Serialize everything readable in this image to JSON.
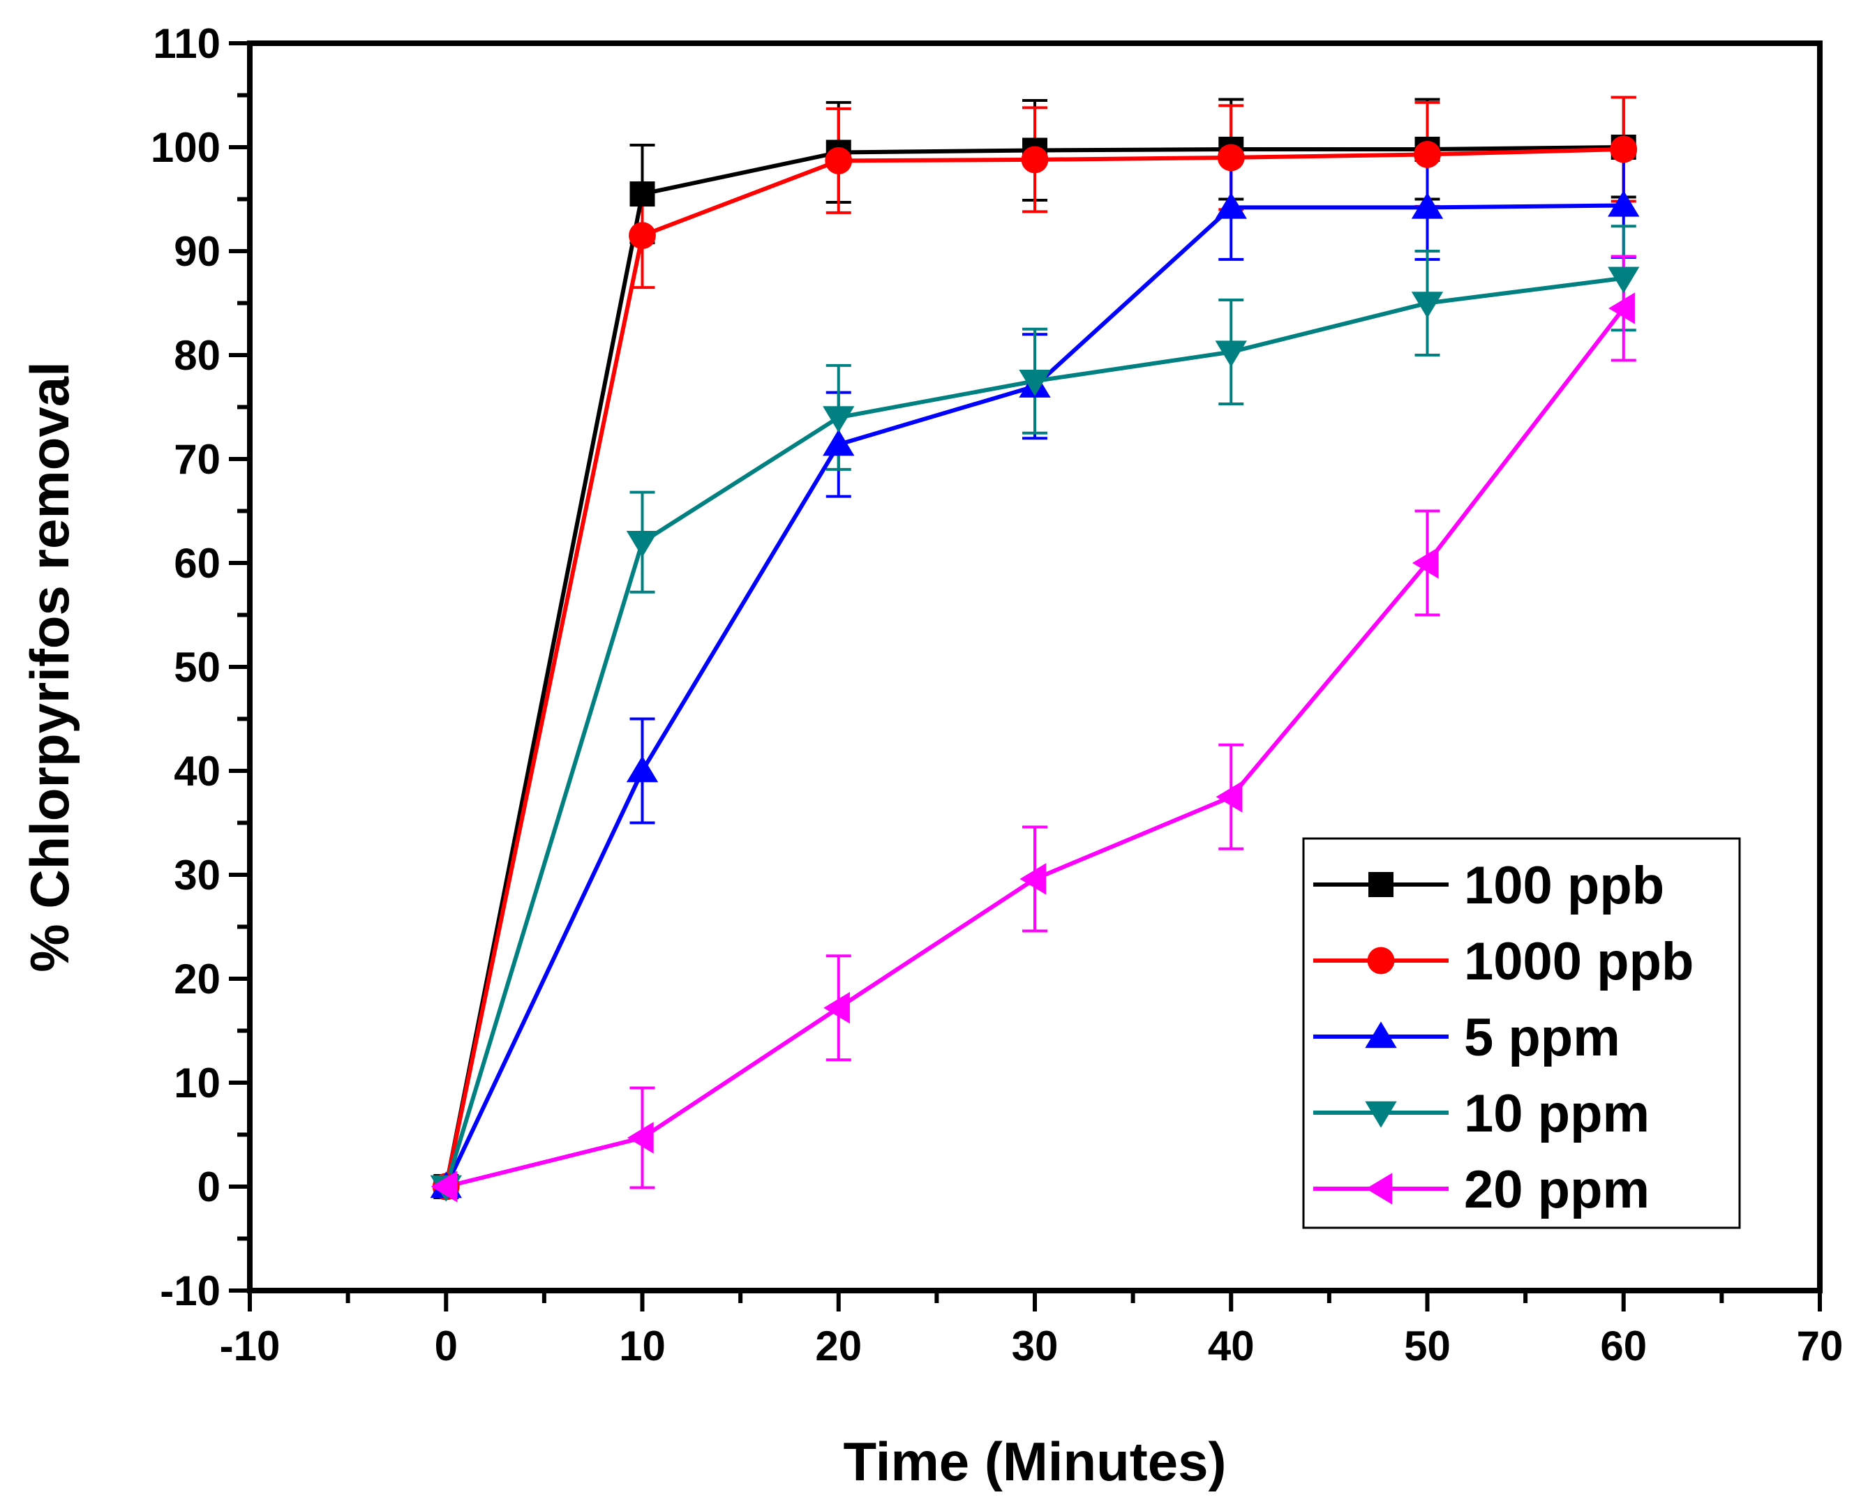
{
  "chart_data": {
    "type": "line",
    "title": "",
    "xlabel": "Time (Minutes)",
    "ylabel": "% Chlorpyrifos removal",
    "xlim": [
      -10,
      70
    ],
    "ylim": [
      -10,
      110
    ],
    "xticks": [
      -10,
      0,
      10,
      20,
      30,
      40,
      50,
      60,
      70
    ],
    "yticks": [
      -10,
      0,
      10,
      20,
      30,
      40,
      50,
      60,
      70,
      80,
      90,
      100,
      110
    ],
    "grid": false,
    "legend_position": "bottom-right",
    "x": [
      0,
      10,
      20,
      30,
      40,
      50,
      60
    ],
    "series": [
      {
        "name": "100 ppb",
        "color": "#000000",
        "marker": "square",
        "values": [
          0,
          95.5,
          99.5,
          99.7,
          99.8,
          99.8,
          100.0
        ],
        "errors": [
          0,
          4.7,
          4.8,
          4.8,
          4.8,
          4.8,
          4.8
        ]
      },
      {
        "name": "1000 ppb",
        "color": "#ff0000",
        "marker": "circle",
        "values": [
          0,
          91.5,
          98.7,
          98.8,
          99.0,
          99.3,
          99.8
        ],
        "errors": [
          0,
          5.0,
          5.0,
          5.0,
          5.0,
          5.0,
          5.0
        ]
      },
      {
        "name": "5 ppm",
        "color": "#0000ff",
        "marker": "triangle-up",
        "values": [
          0,
          40.0,
          71.4,
          77.0,
          94.2,
          94.2,
          94.4
        ],
        "errors": [
          0,
          5.0,
          5.0,
          5.0,
          5.0,
          5.0,
          5.0
        ]
      },
      {
        "name": "10 ppm",
        "color": "#008080",
        "marker": "triangle-down",
        "values": [
          0,
          62.0,
          74.0,
          77.5,
          80.3,
          85.0,
          87.4
        ],
        "errors": [
          0,
          4.8,
          5.0,
          5.0,
          5.0,
          5.0,
          5.0
        ]
      },
      {
        "name": "20 ppm",
        "color": "#ff00ff",
        "marker": "triangle-left",
        "values": [
          0,
          4.7,
          17.2,
          29.6,
          37.5,
          60.0,
          84.5
        ],
        "errors": [
          0,
          4.8,
          5.0,
          5.0,
          5.0,
          5.0,
          5.0
        ]
      }
    ]
  }
}
